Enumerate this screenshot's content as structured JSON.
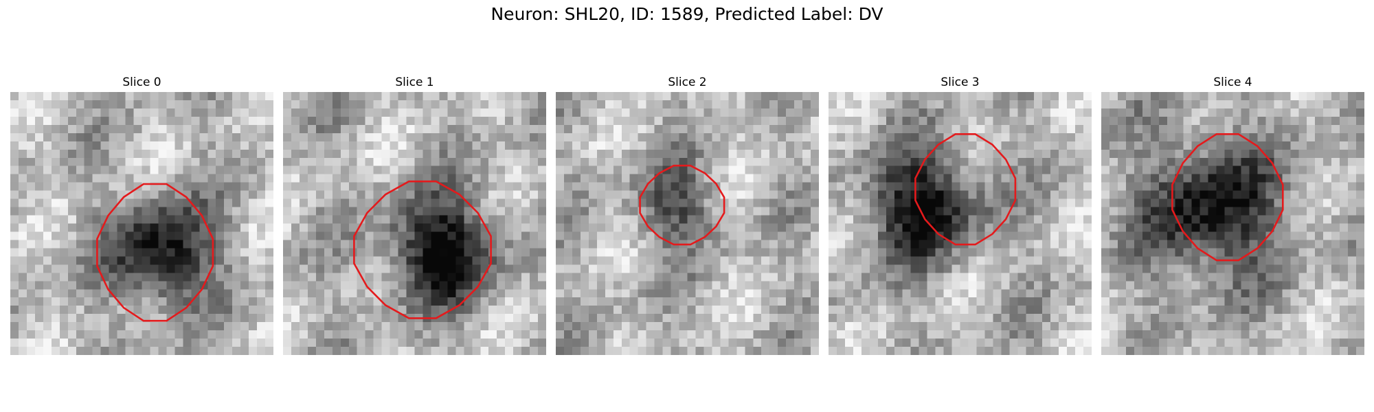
{
  "figure": {
    "title": "Neuron: SHL20, ID: 1589, Predicted Label: DV"
  },
  "panels": [
    {
      "title": "Slice 0",
      "roi_center": [
        0.55,
        0.61
      ],
      "roi_radius": [
        0.22,
        0.26
      ],
      "blob_center": [
        0.58,
        0.61
      ],
      "blob_radius": 0.2,
      "blob_strength": 0.72
    },
    {
      "title": "Slice 1",
      "roi_center": [
        0.53,
        0.6
      ],
      "roi_radius": [
        0.26,
        0.26
      ],
      "blob_center": [
        0.6,
        0.6
      ],
      "blob_radius": 0.21,
      "blob_strength": 0.75
    },
    {
      "title": "Slice 2",
      "roi_center": [
        0.48,
        0.43
      ],
      "roi_radius": [
        0.16,
        0.15
      ],
      "blob_center": [
        0.45,
        0.43
      ],
      "blob_radius": 0.16,
      "blob_strength": 0.42
    },
    {
      "title": "Slice 3",
      "roi_center": [
        0.52,
        0.37
      ],
      "roi_radius": [
        0.19,
        0.21
      ],
      "blob_center": [
        0.36,
        0.43
      ],
      "blob_radius": 0.22,
      "blob_strength": 0.7
    },
    {
      "title": "Slice 4",
      "roi_center": [
        0.48,
        0.4
      ],
      "roi_radius": [
        0.21,
        0.24
      ],
      "blob_center": [
        0.42,
        0.45
      ],
      "blob_radius": 0.28,
      "blob_strength": 0.65
    }
  ],
  "colors": {
    "roi_outline": "#e41a1c"
  }
}
